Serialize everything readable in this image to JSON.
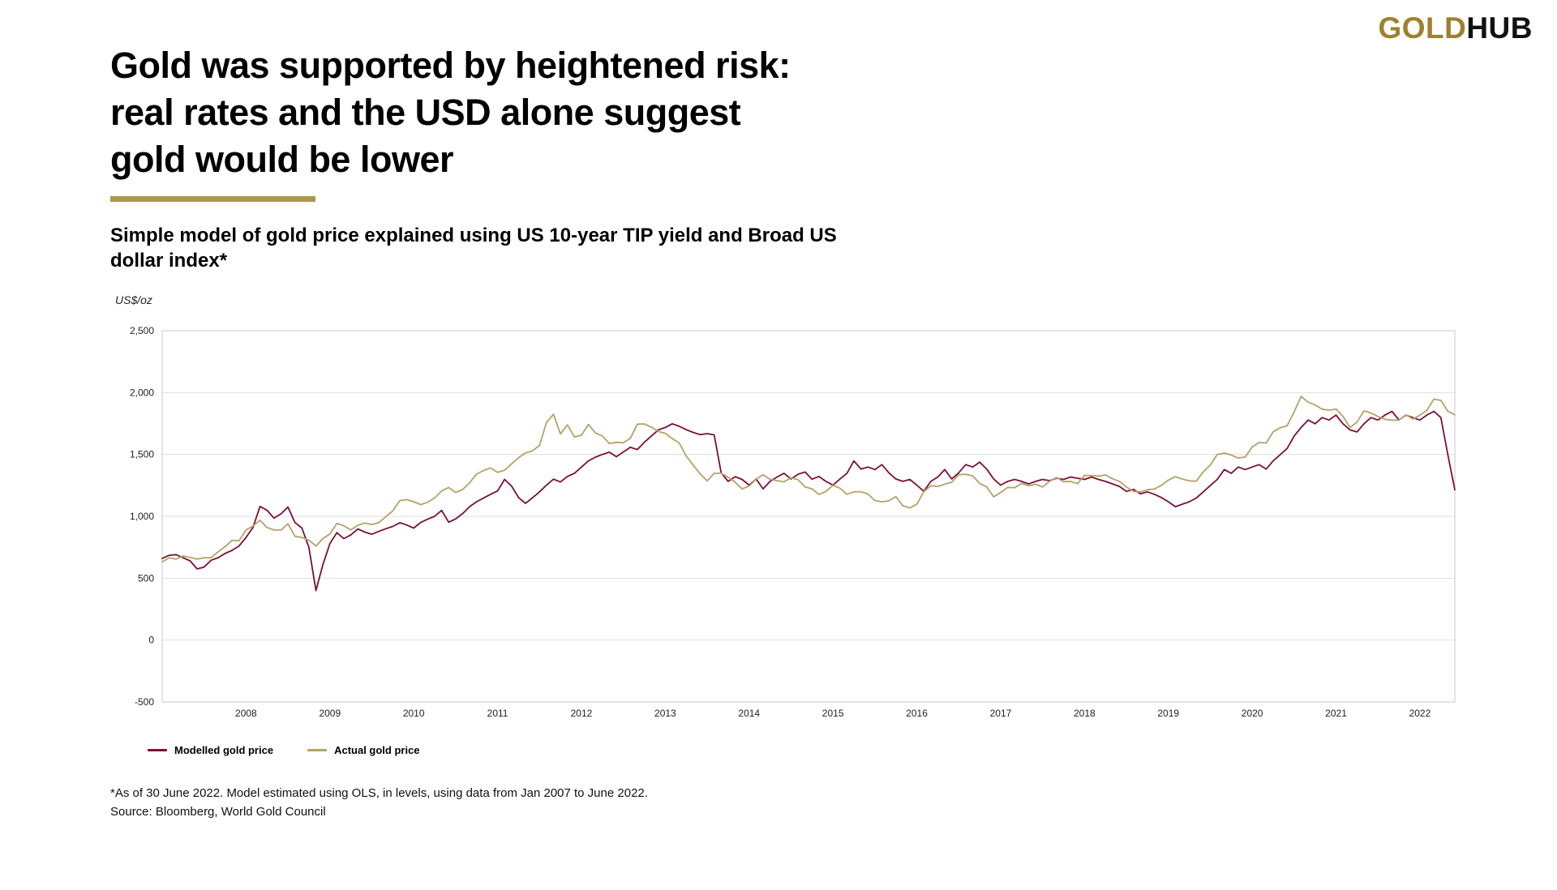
{
  "logo": {
    "gold": "GOLD",
    "hub": "HUB"
  },
  "header": {
    "title": "Gold was supported by heightened risk:\nreal rates and the USD alone suggest\ngold would be lower",
    "subtitle": "Simple model of gold price explained using US 10-year TIP yield and Broad US\ndollar index*"
  },
  "footer": {
    "note": "*As of 30 June 2022. Model estimated using OLS, in levels, using data from Jan 2007 to June 2022.",
    "source": "Source: Bloomberg, World Gold Council"
  },
  "colors": {
    "logo_gold": "#9F802C",
    "accent_bar": "#AD9752",
    "modelled_line": "#7C1034",
    "actual_line": "#B4A269"
  },
  "chart_data": {
    "type": "line",
    "title": "Simple model of gold price explained using US 10-year TIP yield and Broad US dollar index*",
    "ylabel": "US$/oz",
    "xlabel": "",
    "ylim": [
      -500,
      2500
    ],
    "yticks": [
      2500,
      2000,
      1500,
      1000,
      500,
      0,
      -500
    ],
    "xticks": [
      "2008",
      "2009",
      "2010",
      "2011",
      "2012",
      "2013",
      "2014",
      "2015",
      "2016",
      "2017",
      "2018",
      "2019",
      "2020",
      "2021",
      "2022"
    ],
    "start_year": 2007,
    "x_range": [
      "Jan 2007",
      "Jun 2022"
    ],
    "frequency": "monthly",
    "grid_on": true,
    "grid_color": "#dedede",
    "border_color": "#c9c9c9",
    "legend_position": "bottom-left",
    "series": [
      {
        "name": "Modelled gold price",
        "color": "#7C1034",
        "values": [
          660,
          685,
          690,
          665,
          640,
          575,
          590,
          645,
          665,
          700,
          725,
          760,
          830,
          910,
          1080,
          1050,
          985,
          1020,
          1075,
          950,
          905,
          750,
          400,
          610,
          780,
          868,
          820,
          850,
          898,
          872,
          855,
          878,
          900,
          918,
          948,
          930,
          905,
          950,
          978,
          1000,
          1048,
          952,
          980,
          1022,
          1078,
          1118,
          1148,
          1178,
          1205,
          1298,
          1245,
          1152,
          1105,
          1150,
          1198,
          1252,
          1300,
          1278,
          1322,
          1348,
          1398,
          1448,
          1478,
          1500,
          1518,
          1482,
          1520,
          1558,
          1540,
          1598,
          1648,
          1698,
          1718,
          1748,
          1728,
          1700,
          1678,
          1660,
          1668,
          1658,
          1352,
          1282,
          1320,
          1298,
          1252,
          1302,
          1222,
          1282,
          1318,
          1348,
          1302,
          1340,
          1358,
          1300,
          1322,
          1282,
          1252,
          1302,
          1348,
          1448,
          1382,
          1398,
          1378,
          1418,
          1352,
          1302,
          1282,
          1298,
          1252,
          1202,
          1282,
          1318,
          1378,
          1302,
          1352,
          1418,
          1398,
          1438,
          1382,
          1302,
          1252,
          1282,
          1298,
          1282,
          1262,
          1282,
          1298,
          1288,
          1308,
          1298,
          1318,
          1308,
          1298,
          1318,
          1298,
          1282,
          1262,
          1242,
          1202,
          1218,
          1182,
          1198,
          1178,
          1152,
          1118,
          1078,
          1098,
          1118,
          1148,
          1198,
          1248,
          1298,
          1378,
          1348,
          1398,
          1378,
          1398,
          1418,
          1382,
          1448,
          1498,
          1548,
          1648,
          1718,
          1778,
          1748,
          1798,
          1778,
          1818,
          1748,
          1698,
          1682,
          1748,
          1798,
          1778,
          1818,
          1848,
          1778,
          1818,
          1798,
          1778,
          1818,
          1848,
          1798,
          1498,
          1215
        ]
      },
      {
        "name": "Actual gold price",
        "color": "#B4A269",
        "values": [
          632,
          665,
          655,
          680,
          667,
          655,
          665,
          665,
          713,
          755,
          806,
          803,
          890,
          922,
          968,
          910,
          889,
          889,
          940,
          839,
          829,
          807,
          760,
          820,
          858,
          943,
          924,
          890,
          928,
          946,
          934,
          949,
          997,
          1043,
          1127,
          1135,
          1118,
          1095,
          1113,
          1149,
          1205,
          1233,
          1193,
          1216,
          1271,
          1342,
          1370,
          1391,
          1356,
          1373,
          1424,
          1474,
          1512,
          1529,
          1573,
          1759,
          1825,
          1666,
          1739,
          1641,
          1656,
          1743,
          1674,
          1650,
          1589,
          1598,
          1594,
          1630,
          1745,
          1747,
          1721,
          1685,
          1671,
          1628,
          1593,
          1487,
          1414,
          1343,
          1287,
          1348,
          1348,
          1316,
          1276,
          1222,
          1244,
          1301,
          1336,
          1299,
          1288,
          1279,
          1311,
          1296,
          1238,
          1222,
          1176,
          1201,
          1251,
          1227,
          1178,
          1198,
          1199,
          1181,
          1128,
          1117,
          1125,
          1159,
          1086,
          1068,
          1097,
          1200,
          1246,
          1242,
          1260,
          1276,
          1337,
          1340,
          1327,
          1266,
          1238,
          1157,
          1192,
          1234,
          1231,
          1266,
          1246,
          1260,
          1237,
          1283,
          1314,
          1280,
          1282,
          1264,
          1331,
          1330,
          1325,
          1334,
          1303,
          1282,
          1238,
          1201,
          1198,
          1215,
          1221,
          1250,
          1292,
          1320,
          1301,
          1286,
          1284,
          1359,
          1413,
          1500,
          1511,
          1495,
          1471,
          1479,
          1561,
          1597,
          1592,
          1683,
          1716,
          1732,
          1843,
          1969,
          1922,
          1900,
          1866,
          1858,
          1867,
          1808,
          1718,
          1762,
          1853,
          1835,
          1807,
          1784,
          1777,
          1777,
          1820,
          1787,
          1817,
          1856,
          1948,
          1937,
          1850,
          1820
        ]
      }
    ]
  }
}
